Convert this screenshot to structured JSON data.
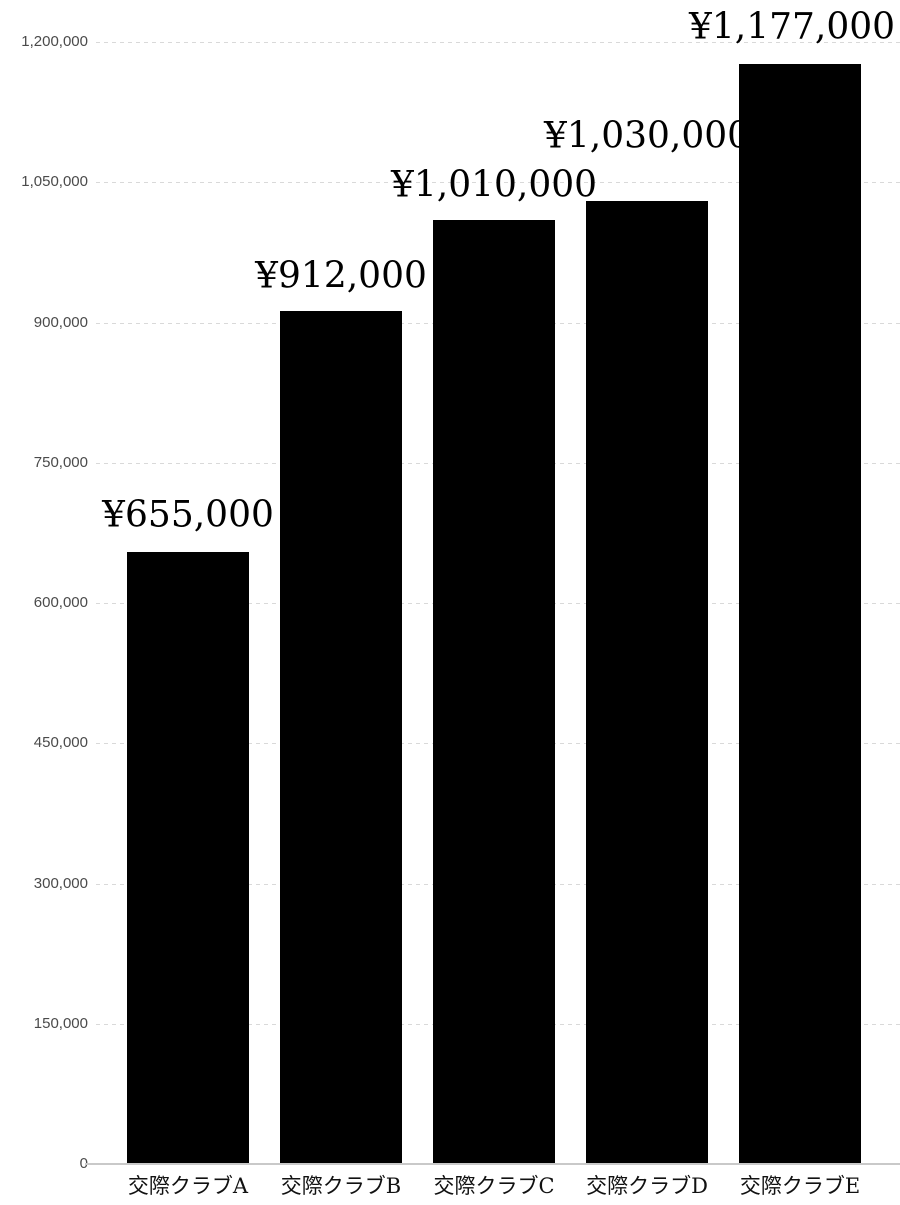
{
  "page": {
    "background": "#ffffff"
  },
  "chart_data": {
    "type": "bar",
    "title": "",
    "categories": [
      "交際クラブA",
      "交際クラブB",
      "交際クラブC",
      "交際クラブD",
      "交際クラブE"
    ],
    "values": [
      655000,
      912000,
      1010000,
      1030000,
      1177000
    ],
    "value_labels": [
      "¥655,000",
      "¥912,000",
      "¥1,010,000",
      "¥1,030,000",
      "¥1,177,000"
    ],
    "currency_symbol": "¥",
    "xlabel": "",
    "ylabel": "",
    "y_axis": {
      "min": 0,
      "max": 1200000,
      "tick_interval": 150000,
      "tick_values": [
        0,
        150000,
        300000,
        450000,
        600000,
        750000,
        900000,
        1050000,
        1200000
      ],
      "tick_labels": [
        "0",
        "150,000",
        "300,000",
        "450,000",
        "600,000",
        "750,000",
        "900,000",
        "1,050,000",
        "1,200,000"
      ],
      "grid": "dashed-horizontal"
    },
    "legend": "none",
    "colors": {
      "bar": "#000000",
      "gridline": "#d9d9d9",
      "baseline": "#c9c9c9",
      "axis_tick_label": "#4a4a4a",
      "value_label": "#000000",
      "category_label": "#111111",
      "background": "#ffffff"
    }
  }
}
